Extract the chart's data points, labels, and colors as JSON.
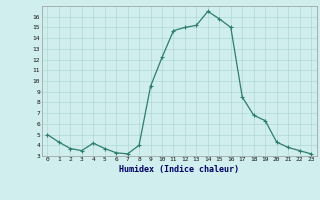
{
  "x": [
    0,
    1,
    2,
    3,
    4,
    5,
    6,
    7,
    8,
    9,
    10,
    11,
    12,
    13,
    14,
    15,
    16,
    17,
    18,
    19,
    20,
    21,
    22,
    23
  ],
  "y": [
    5.0,
    4.3,
    3.7,
    3.5,
    4.2,
    3.7,
    3.3,
    3.2,
    4.0,
    9.5,
    12.2,
    14.7,
    15.0,
    15.2,
    16.5,
    15.8,
    15.0,
    8.5,
    6.8,
    6.3,
    4.3,
    3.8,
    3.5,
    3.2
  ],
  "xlabel": "Humidex (Indice chaleur)",
  "xlim": [
    -0.5,
    23.5
  ],
  "ylim": [
    3,
    17
  ],
  "yticks": [
    3,
    4,
    5,
    6,
    7,
    8,
    9,
    10,
    11,
    12,
    13,
    14,
    15,
    16
  ],
  "xticks": [
    0,
    1,
    2,
    3,
    4,
    5,
    6,
    7,
    8,
    9,
    10,
    11,
    12,
    13,
    14,
    15,
    16,
    17,
    18,
    19,
    20,
    21,
    22,
    23
  ],
  "line_color": "#2e7d6e",
  "marker_color": "#2e7d6e",
  "bg_color": "#d0eeee",
  "grid_color": "#b0d8d8",
  "title": ""
}
